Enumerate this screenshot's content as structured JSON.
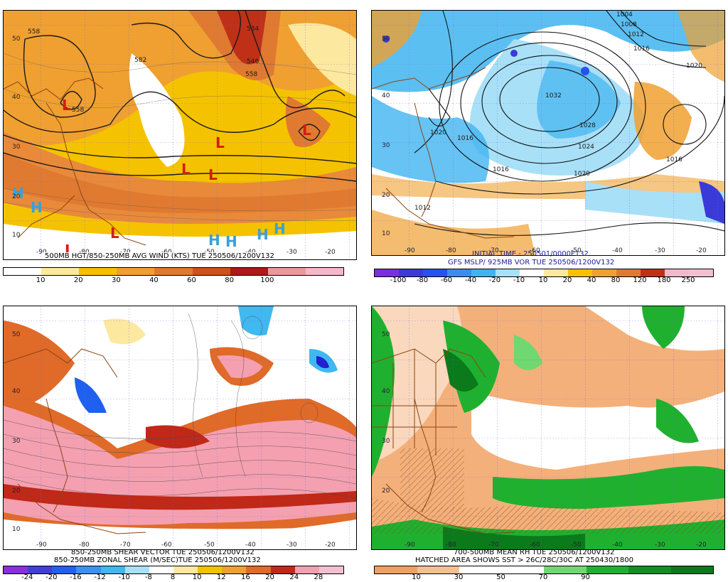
{
  "panels": {
    "top_left": {
      "caption1": "500MB HGT/850-250MB AVG WIND (KTS) TUE 250506/1200V132",
      "colorbar_labels": [
        "10",
        "20",
        "30",
        "40",
        "60",
        "80",
        "100"
      ],
      "colorbar_colors": [
        "#ffffff",
        "#fde8a0",
        "#f5c200",
        "#f0a030",
        "#e07a30",
        "#d05020",
        "#b01818",
        "#e89a9a",
        "#f4b8c8"
      ],
      "contour_labels": [
        "558",
        "534",
        "546",
        "558",
        "582",
        "558"
      ],
      "lat_labels": [
        "50",
        "40",
        "30",
        "20",
        "10"
      ],
      "lon_labels": [
        "-90",
        "-80",
        "-70",
        "-60",
        "-50",
        "-40",
        "-30",
        "-20"
      ],
      "highs": [
        "H",
        "H",
        "H",
        "H",
        "H",
        "H"
      ],
      "lows": [
        "L",
        "L",
        "L",
        "L",
        "L",
        "L",
        "L"
      ]
    },
    "top_right": {
      "caption1": "INITIAL TIME - 250501/0000F132",
      "caption2": "GFS MSLP/ 925MB VOR TUE 250506/1200V132",
      "colorbar_labels": [
        "-100",
        "-80",
        "-60",
        "-40",
        "-20",
        "-10",
        "10",
        "20",
        "40",
        "80",
        "120",
        "180",
        "250"
      ],
      "colorbar_colors": [
        "#7a2ee0",
        "#3a3ad8",
        "#2850f0",
        "#3c8cf0",
        "#40b4f0",
        "#a8e0f8",
        "#ffffff",
        "#fde8a0",
        "#f5c200",
        "#f0a030",
        "#e07a30",
        "#c03018",
        "#f0b8c8",
        "#f4c0d0"
      ],
      "isobar_labels": [
        "1004",
        "1008",
        "1012",
        "1016",
        "1020",
        "1032",
        "1028",
        "1024",
        "1020",
        "1016",
        "1016",
        "1020",
        "1016",
        "1012"
      ],
      "lat_labels": [
        "50",
        "40",
        "30",
        "20",
        "10"
      ],
      "lon_labels": [
        "-90",
        "-80",
        "-70",
        "-60",
        "-50",
        "-40",
        "-30",
        "-20"
      ]
    },
    "bottom_left": {
      "caption1": "850-250MB SHEAR VECTOR TUE 250506/1200V132",
      "caption2": "850-250MB ZONAL SHEAR (M/SEC)TUE 250506/1200V132",
      "colorbar_labels": [
        "-24",
        "-20",
        "-16",
        "-12",
        "-10",
        "-8",
        "8",
        "10",
        "12",
        "16",
        "20",
        "24",
        "28"
      ],
      "colorbar_colors": [
        "#8a2ee0",
        "#4040d8",
        "#2060f0",
        "#3c90f0",
        "#40b8f0",
        "#a8e0f8",
        "#ffffff",
        "#fde8a0",
        "#f5c200",
        "#f0a030",
        "#e06a28",
        "#c02818",
        "#f4a0b0",
        "#f4c0d0"
      ],
      "lat_labels": [
        "50",
        "40",
        "30",
        "20",
        "10"
      ],
      "lon_labels": [
        "-90",
        "-80",
        "-70",
        "-60",
        "-50",
        "-40",
        "-30",
        "-20"
      ]
    },
    "bottom_right": {
      "caption1": "700-500MB MEAN RH TUE 250506/1200V132",
      "caption2": "HATCHED AREA SHOWS SST > 26C/28C/30C AT 250430/1800",
      "colorbar_labels": [
        "10",
        "30",
        "50",
        "70",
        "90"
      ],
      "colorbar_colors": [
        "#f0a060",
        "#f4c090",
        "#ffffff",
        "#ffffff",
        "#70d870",
        "#20b030",
        "#109020",
        "#0a7a1a"
      ],
      "lat_labels": [
        "50",
        "40",
        "30",
        "20"
      ],
      "lon_labels": [
        "-90",
        "-80",
        "-70",
        "-60",
        "-50",
        "-40",
        "-30",
        "-20"
      ]
    }
  }
}
